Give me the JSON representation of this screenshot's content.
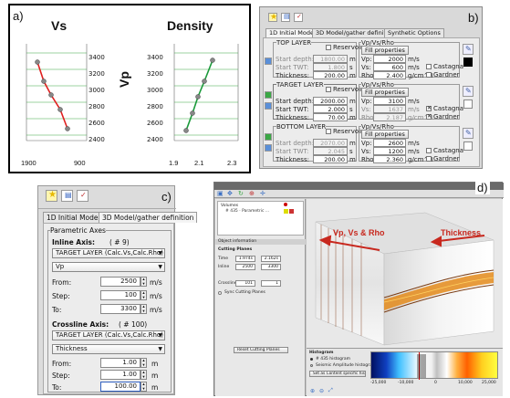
{
  "panel_a": {
    "tag": "a)",
    "vs_title": "Vs",
    "density_title": "Density",
    "vp_label": "Vp",
    "yticks": [
      "3400",
      "3200",
      "3000",
      "2800",
      "2600",
      "2400"
    ],
    "vs_xticks": [
      "1900",
      "900"
    ],
    "density_xticks": [
      "1.9",
      "2.1",
      "2.3"
    ],
    "line_colors": {
      "vs": "#e02020",
      "density": "#1a9a3a"
    }
  },
  "panel_b": {
    "tag": "b)",
    "tabs": [
      "1D Initial Model",
      "3D Model/gather definition",
      "Synthetic Options"
    ],
    "top_layer": {
      "title": "TOP LAYER",
      "vp_title": "Vp/Vs/Rho",
      "reservoir": "Reservoir",
      "fill": "Fill properties",
      "start_depth_label": "Start depth:",
      "start_depth": "1800.00",
      "start_depth_unit": "m",
      "start_twt_label": "Start TWT:",
      "start_twt": "1.800",
      "start_twt_unit": "s",
      "thickness_label": "Thickness:",
      "thickness": "200.00",
      "thickness_unit": "m",
      "vp_label": "Vp:",
      "vp": "2000",
      "vp_unit": "m/s",
      "vs_label": "Vs:",
      "vs": "600",
      "vs_unit": "m/s",
      "rho_label": "Rho:",
      "rho": "2.400",
      "rho_unit": "g/cm^3",
      "castagna": "Castagna",
      "gardner": "Gardner"
    },
    "target_layer": {
      "title": "TARGET LAYER",
      "vp_title": "Vp/Vs/Rho",
      "reservoir": "Reservoir",
      "fill": "Fill properties",
      "start_depth_label": "Start depth:",
      "start_depth": "2000.00",
      "start_depth_unit": "m",
      "start_twt_label": "Start TWT:",
      "start_twt": "2.000",
      "start_twt_unit": "s",
      "thickness_label": "Thickness:",
      "thickness": "70.00",
      "thickness_unit": "m",
      "vp_label": "Vp:",
      "vp": "3100",
      "vp_unit": "m/s",
      "vs_label": "Vs:",
      "vs": "1637",
      "vs_unit": "m/s",
      "rho_label": "Rho:",
      "rho": "2.187",
      "rho_unit": "g/cm^3",
      "castagna": "Castagna",
      "gardner": "Gardner"
    },
    "bottom_layer": {
      "title": "BOTTOM LAYER",
      "vp_title": "Vp/Vs/Rho",
      "reservoir": "Reservoir",
      "fill": "Fill properties",
      "start_depth_label": "Start depth:",
      "start_depth": "2070.00",
      "start_depth_unit": "m",
      "start_twt_label": "Start TWT:",
      "start_twt": "2.045",
      "start_twt_unit": "s",
      "thickness_label": "Thickness:",
      "thickness": "200.00",
      "thickness_unit": "m",
      "vp_label": "Vp:",
      "vp": "2600",
      "vp_unit": "m/s",
      "vs_label": "Vs:",
      "vs": "1200",
      "vs_unit": "m/s",
      "rho_label": "Rho:",
      "rho": "2.360",
      "rho_unit": "g/cm^3",
      "castagna": "Castagna",
      "gardner": "Gardner"
    }
  },
  "panel_c": {
    "tag": "c)",
    "tabs": [
      "1D Initial Model",
      "3D Model/gather definition"
    ],
    "group_title": "Parametric Axes",
    "inline_title": "Inline Axis:",
    "inline_count": "( # 9)",
    "inline_layer": "TARGET LAYER (Calc.Vs,Calc.Rho)",
    "inline_prop": "Vp",
    "from_label": "From:",
    "inline_from": "2500",
    "inline_from_unit": "m/s",
    "step_label": "Step:",
    "inline_step": "100",
    "inline_step_unit": "m/s",
    "to_label": "To:",
    "inline_to": "3300",
    "inline_to_unit": "m/s",
    "crossline_title": "Crossline Axis:",
    "crossline_count": "( # 100)",
    "crossline_layer": "TARGET LAYER (Calc.Vs,Calc.Rho)",
    "crossline_prop": "Thickness",
    "crossline_from": "1.00",
    "crossline_from_unit": "m",
    "crossline_step": "1.00",
    "crossline_step_unit": "m",
    "crossline_to": "100.00",
    "crossline_to_unit": "m"
  },
  "panel_d": {
    "tag": "d)",
    "annot_vp": "Vp, Vs & Rho",
    "annot_thickness": "Thickness",
    "tree_root": "Volumes",
    "tree_item": "# 435 · Parametric ...",
    "object_info": "Object information",
    "cutting_planes": "Cutting Planes",
    "time_label": "Time",
    "time_v1": "1.974s",
    "time_v2": "2.162s",
    "inline_label": "Inline",
    "inline_v1": "2500",
    "inline_v2": "3300",
    "crossline_label": "Crossline",
    "crossline_v1": "101",
    "crossline_v2": "1",
    "sync": "Sync Cutting Planes",
    "reset": "Reset Cutting Planes",
    "histogram": "Histogram",
    "hist_item1": "# 435 histogram",
    "hist_item2": "Seismic Amplitude histogram",
    "hist_btn": "Set as Content specific histogram",
    "hist_ticks": [
      "-25,000",
      "-10,000",
      "0",
      "10,000",
      "25,000"
    ],
    "colors": {
      "vp_annot": "#c8281e",
      "thickness_annot": "#c8281e"
    }
  }
}
